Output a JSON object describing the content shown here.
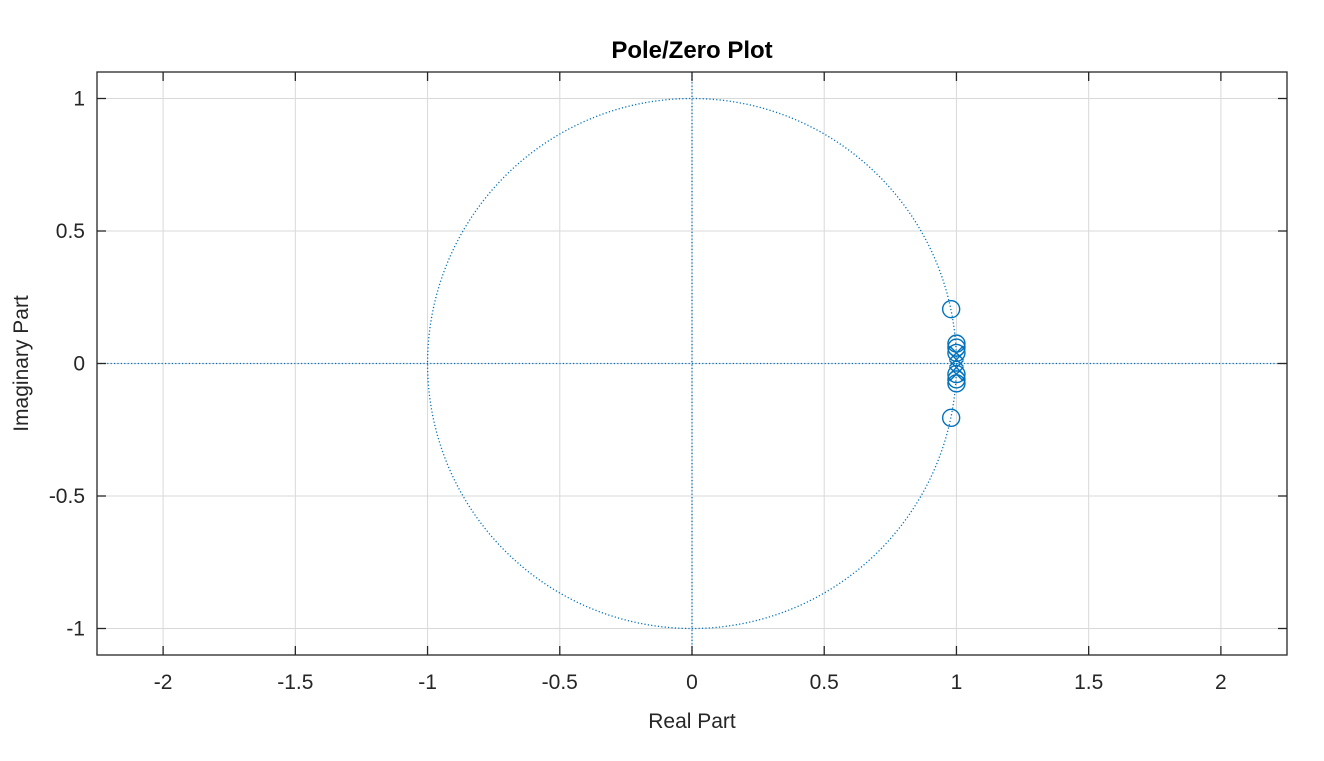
{
  "chart_data": {
    "type": "scatter",
    "title": "Pole/Zero Plot",
    "xlabel": "Real Part",
    "ylabel": "Imaginary Part",
    "xlim": [
      -2.25,
      2.25
    ],
    "ylim": [
      -1.1,
      1.1
    ],
    "grid": true,
    "x_ticks": [
      -2,
      -1.5,
      -1,
      -0.5,
      0,
      0.5,
      1,
      1.5,
      2
    ],
    "x_tick_labels": [
      "-2",
      "-1.5",
      "-1",
      "-0.5",
      "0",
      "0.5",
      "1",
      "1.5",
      "2"
    ],
    "y_ticks": [
      -1,
      -0.5,
      0,
      0.5,
      1
    ],
    "y_tick_labels": [
      "-1",
      "-0.5",
      "0",
      "0.5",
      "1"
    ],
    "unit_circle_radius": 1,
    "series": [
      {
        "marker": "o",
        "color": "#0072bd",
        "points": [
          {
            "x": 0.98,
            "y": 0.205
          },
          {
            "x": 0.98,
            "y": -0.205
          },
          {
            "x": 1.0,
            "y": 0.075
          },
          {
            "x": 1.0,
            "y": -0.075
          },
          {
            "x": 1.0,
            "y": 0.06
          },
          {
            "x": 1.0,
            "y": -0.06
          },
          {
            "x": 1.0,
            "y": 0.04
          },
          {
            "x": 1.0,
            "y": -0.04
          }
        ]
      },
      {
        "marker": "x",
        "color": "#0072bd",
        "points": [
          {
            "x": 1.0,
            "y": 0.04
          },
          {
            "x": 1.0,
            "y": -0.04
          },
          {
            "x": 1.0,
            "y": 0.015
          },
          {
            "x": 1.0,
            "y": -0.015
          }
        ]
      }
    ]
  }
}
